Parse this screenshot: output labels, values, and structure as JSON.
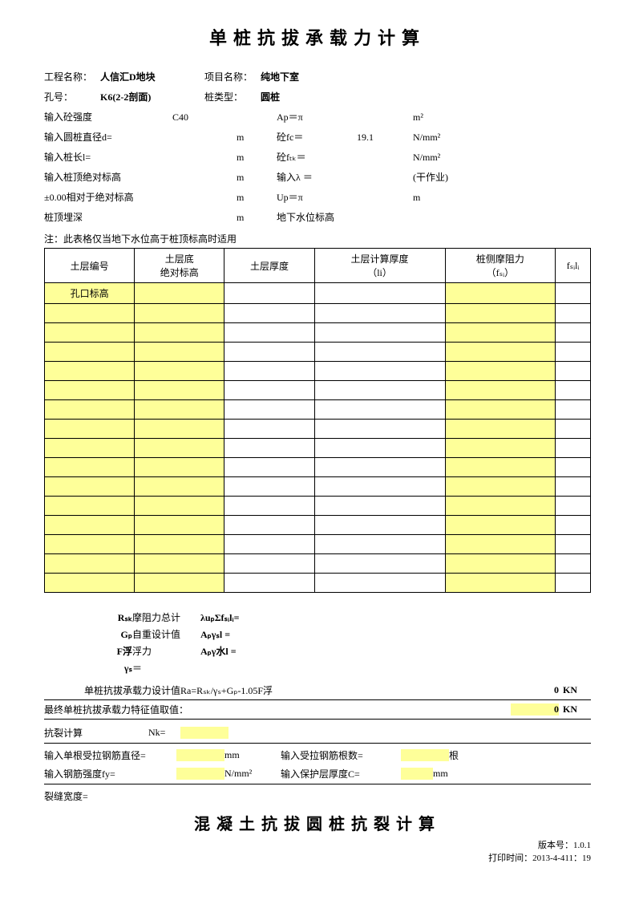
{
  "colors": {
    "highlight": "#feff99",
    "border": "#000000",
    "text": "#000000",
    "bg": "#ffffff"
  },
  "title": "单桩抗拔承载力计算",
  "title2": "混凝土抗拔圆桩抗裂计算",
  "header": {
    "proj_label": "工程名称：",
    "proj_value": "人信汇D地块",
    "item_label": "项目名称：",
    "item_value": "纯地下室",
    "hole_label": "孔号：",
    "hole_value": "K6(2-2剖面)",
    "type_label": "桩类型：",
    "type_value": "圆桩"
  },
  "params": [
    {
      "c1": "输入砼强度",
      "c2": "C40",
      "c3": "",
      "c4": "Ap＝π",
      "c5": "",
      "c6": "m²"
    },
    {
      "c1": "输入圆桩直径d=",
      "c2": "",
      "c3": "m",
      "c4": "砼fc＝",
      "c5": "19.1",
      "c6": "N/mm²"
    },
    {
      "c1": "输入桩长l=",
      "c2": "",
      "c3": "m",
      "c4": "砼fₜₖ＝",
      "c5": "",
      "c6": "N/mm²"
    },
    {
      "c1": "输入桩顶绝对标高",
      "c2": "",
      "c3": "m",
      "c4": "输入λ ＝",
      "c5": "",
      "c6": "(干作业)"
    },
    {
      "c1": "±0.00相对于绝对标高",
      "c2": "",
      "c3": "m",
      "c4": "Up＝π",
      "c5": "",
      "c6": "m"
    },
    {
      "c1": "桩顶埋深",
      "c2": "",
      "c3": "m",
      "c4": "地下水位标高",
      "c5": "",
      "c6": ""
    }
  ],
  "note": "注：此表格仅当地下水位高于桩顶标高时适用",
  "table": {
    "headers": [
      "土层编号",
      "土层底\n绝对标高",
      "土层厚度",
      "土层计算厚度\n（li）",
      "桩侧摩阻力\n（fₛᵢ）",
      "fₛᵢlᵢ"
    ],
    "first_row_label": "孔口标高",
    "num_empty_rows": 15,
    "hl_cols": [
      1,
      4
    ]
  },
  "calc": {
    "r1": {
      "sym": "Rₛₖ",
      "desc": "摩阻力总计",
      "eq": "λuₚΣfₛᵢlᵢ="
    },
    "r2": {
      "sym": "Gₚ",
      "desc": "自重设计值",
      "eq": "Aₚγₛl ="
    },
    "r3": {
      "sym": "F浮",
      "desc": "浮力",
      "eq": "Aₚγ水l ="
    },
    "r4": {
      "sym": "γₛ",
      "desc": "＝",
      "eq": ""
    }
  },
  "results": {
    "design_label": "单桩抗拔承载力设计值Ra=Rₛₖ/γₛ+Gₚ-1.05F浮",
    "design_value": "0",
    "design_unit": "KN",
    "final_label": "最终单桩抗拔承载力特征值取值：",
    "final_value": "0",
    "final_unit": "KN"
  },
  "crack": {
    "heading": "抗裂计算",
    "nk_label": "Nk=",
    "dia_label": "输入单根受拉钢筋直径=",
    "dia_unit": "mm",
    "num_label": "输入受拉钢筋根数=",
    "num_unit": "根",
    "fy_label": "输入钢筋强度fy=",
    "fy_unit": "N/mm²",
    "cover_label": "输入保护层厚度C=",
    "cover_unit": "mm",
    "width_label": "裂缝宽度="
  },
  "footer": {
    "version_label": "版本号：",
    "version": "1.0.1",
    "print_label": "打印时间：",
    "print_time": "2013-4-411：19"
  }
}
